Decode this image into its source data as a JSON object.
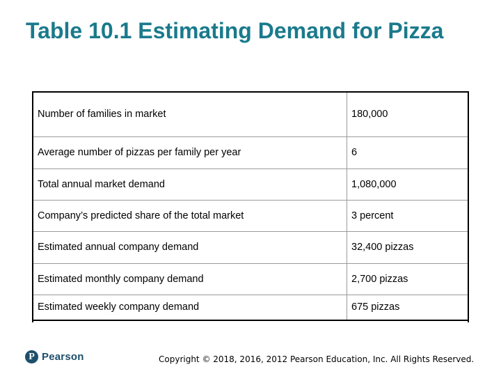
{
  "slide": {
    "title": "Table 10.1 Estimating Demand for Pizza"
  },
  "table": {
    "rows": [
      {
        "label": "Number of families in market",
        "value": "180,000"
      },
      {
        "label": "Average number of pizzas per family per year",
        "value": "6"
      },
      {
        "label": "Total annual market demand",
        "value": "1,080,000"
      },
      {
        "label": "Company’s predicted share of the total market",
        "value": "3 percent"
      },
      {
        "label": "Estimated annual company demand",
        "value": "32,400 pizzas"
      },
      {
        "label": "Estimated monthly company demand",
        "value": "2,700 pizzas"
      },
      {
        "label": "Estimated weekly company demand",
        "value": "675 pizzas"
      }
    ]
  },
  "footer": {
    "logo_letter": "P",
    "logo_text": "Pearson",
    "copyright": "Copyright © 2018, 2016, 2012 Pearson Education, Inc. All Rights Reserved."
  },
  "colors": {
    "title": "#1a7a8c",
    "logo": "#1c4f6b"
  }
}
